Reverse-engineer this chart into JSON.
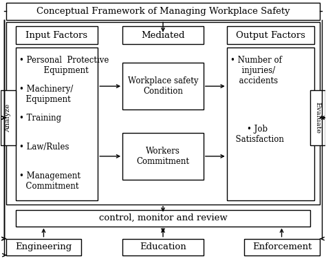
{
  "bg_color": "#ffffff",
  "title_text": "Conceptual Framework of Managing Workplace Safety",
  "control_text": "control, monitor and review",
  "analyze_text": "Analyze",
  "evaluate_text": "Evaluate",
  "input_label": "Input Factors",
  "mediated_label": "Mediated",
  "output_label": "Output Factors",
  "workplace_text": "Workplace safety\nCondition",
  "workers_text": "Workers\nCommitment",
  "engineering_text": "Engineering",
  "education_text": "Education",
  "enforcement_text": "Enforcement",
  "input_bullets": [
    "• Personal  Protective\n  Equipment",
    "• Machinery/\n  Equipment",
    "• Training",
    "• Law/Rules",
    "• Management\n  Commitment"
  ],
  "output_bullets": [
    "• Number of\n  injuries/\n  accidents",
    "• Job\n  Satisfaction"
  ],
  "lw": 1.0,
  "font_main": 9.5,
  "font_small": 8.5,
  "font_side": 7.5
}
